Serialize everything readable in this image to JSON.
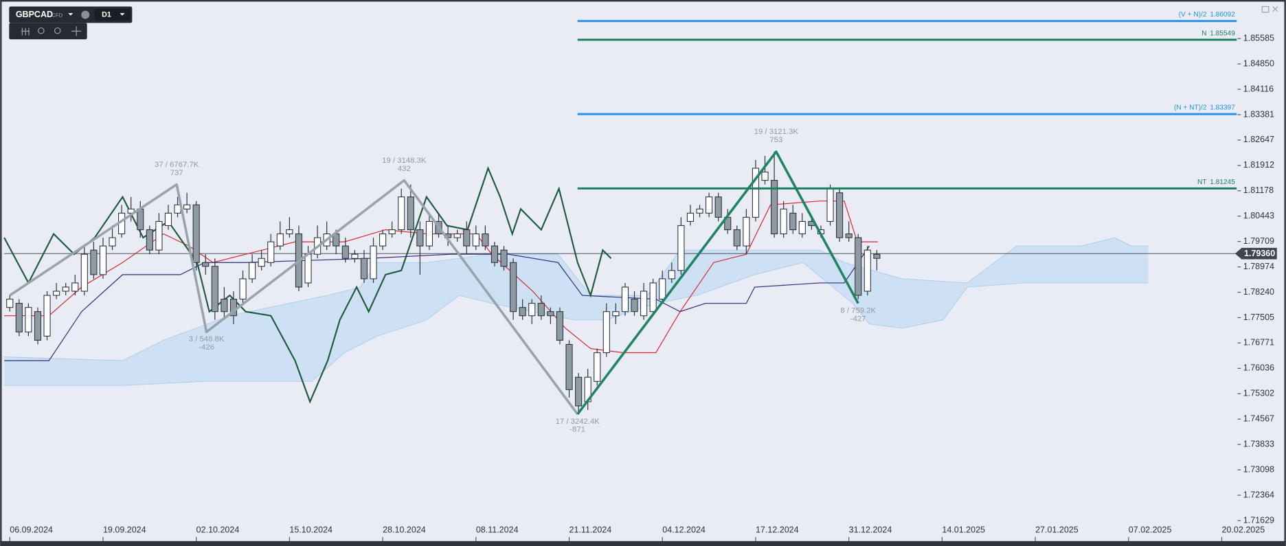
{
  "toolbar": {
    "symbol": "GBPCAD",
    "market": "CFD",
    "timeframe": "D1"
  },
  "chart_data": {
    "type": "candlestick",
    "x": [
      0,
      1,
      2,
      3,
      4,
      5,
      6,
      7,
      8,
      9,
      10,
      11,
      12,
      13,
      14,
      15,
      16,
      17,
      18,
      19,
      20,
      21,
      22,
      23,
      24,
      25,
      26,
      27,
      28,
      29,
      30,
      31,
      32,
      33,
      34,
      35,
      36,
      37,
      38,
      39,
      40,
      41,
      42,
      43,
      44,
      45,
      46,
      47,
      48,
      49,
      50,
      51,
      52,
      53,
      54,
      55,
      56,
      57,
      58,
      59,
      60,
      61,
      62,
      63,
      64,
      65,
      66,
      67,
      68,
      69,
      70,
      71,
      72,
      73,
      74,
      75,
      76,
      77,
      78,
      79,
      80,
      81,
      82,
      83,
      84,
      85,
      86,
      87,
      88,
      89,
      90,
      91,
      92,
      93
    ],
    "open": [
      1.778,
      1.7792,
      1.7709,
      1.7768,
      1.7697,
      1.7815,
      1.7827,
      1.7827,
      1.7827,
      1.7946,
      1.7875,
      1.7958,
      1.7993,
      1.8053,
      1.8065,
      1.8005,
      1.7946,
      1.8017,
      1.8053,
      1.8065,
      1.8077,
      1.791,
      1.7899,
      1.7804,
      1.7804,
      1.7804,
      1.7863,
      1.7899,
      1.791,
      1.7958,
      1.7993,
      1.7993,
      1.7851,
      1.7934,
      1.7958,
      1.7993,
      1.7958,
      1.7922,
      1.7922,
      1.7863,
      1.7958,
      1.7993,
      1.8005,
      1.81,
      1.8005,
      1.7958,
      1.8029,
      1.7993,
      1.7982,
      1.8005,
      1.7958,
      1.7993,
      1.7958,
      1.7946,
      1.791,
      1.778,
      1.7756,
      1.7792,
      1.7768,
      1.7768,
      1.7673,
      1.7578,
      1.7507,
      1.7566,
      1.7649,
      1.7756,
      1.7768,
      1.7804,
      1.7756,
      1.7768,
      1.7804,
      1.7863,
      1.7887,
      1.8029,
      1.8053,
      1.8053,
      1.81,
      1.8041,
      1.8005,
      1.7958,
      1.8041,
      1.8148,
      1.8148,
      1.7993,
      1.8053,
      1.7993,
      1.8029,
      1.7993,
      1.8029,
      1.8112,
      1.7993,
      1.7982,
      1.7827,
      1.7934
    ],
    "high": [
      1.7815,
      1.7804,
      1.7792,
      1.778,
      1.7827,
      1.7851,
      1.7851,
      1.7875,
      1.7958,
      1.797,
      1.7982,
      1.8017,
      1.8077,
      1.81,
      1.8088,
      1.8017,
      1.8053,
      1.8077,
      1.81,
      1.8112,
      1.8088,
      1.7934,
      1.7922,
      1.7839,
      1.7827,
      1.7887,
      1.7934,
      1.7946,
      1.7993,
      1.8029,
      1.8041,
      1.8017,
      1.7958,
      1.8017,
      1.8029,
      1.8005,
      1.7982,
      1.7946,
      1.7946,
      1.7982,
      1.8005,
      1.8029,
      1.8124,
      1.8136,
      1.8029,
      1.8053,
      1.8053,
      1.8017,
      1.8005,
      1.8029,
      1.8017,
      1.8017,
      1.797,
      1.7958,
      1.7922,
      1.7804,
      1.7804,
      1.7815,
      1.778,
      1.778,
      1.7685,
      1.759,
      1.7602,
      1.7661,
      1.7792,
      1.7792,
      1.7851,
      1.7827,
      1.7851,
      1.7863,
      1.7887,
      1.791,
      1.8041,
      1.8077,
      1.8077,
      1.8112,
      1.8112,
      1.8065,
      1.8017,
      1.8065,
      1.8207,
      1.8219,
      1.8231,
      1.8088,
      1.8077,
      1.8053,
      1.8041,
      1.8017,
      1.8136,
      1.8124,
      1.8029,
      1.7993,
      1.7958,
      1.7946
    ],
    "low": [
      1.7768,
      1.7697,
      1.7697,
      1.7673,
      1.7685,
      1.7804,
      1.7815,
      1.7815,
      1.7815,
      1.7863,
      1.7863,
      1.7946,
      1.7982,
      1.8029,
      1.7982,
      1.7934,
      1.7934,
      1.8005,
      1.8041,
      1.8053,
      1.7887,
      1.7875,
      1.7744,
      1.7744,
      1.7732,
      1.7792,
      1.7851,
      1.7887,
      1.7899,
      1.7946,
      1.7982,
      1.7827,
      1.7839,
      1.7922,
      1.7946,
      1.7934,
      1.791,
      1.791,
      1.7851,
      1.7851,
      1.7946,
      1.7982,
      1.7993,
      1.7982,
      1.7875,
      1.7946,
      1.7982,
      1.7958,
      1.797,
      1.7934,
      1.7946,
      1.7946,
      1.7899,
      1.7887,
      1.7744,
      1.7744,
      1.7732,
      1.7744,
      1.7732,
      1.7673,
      1.7519,
      1.7471,
      1.7483,
      1.7554,
      1.7637,
      1.7732,
      1.7756,
      1.7756,
      1.7744,
      1.7756,
      1.7792,
      1.7851,
      1.7875,
      1.8017,
      1.8041,
      1.8041,
      1.8029,
      1.7993,
      1.7946,
      1.7934,
      1.8029,
      1.8136,
      1.7982,
      1.7982,
      1.7993,
      1.7982,
      1.8005,
      1.7982,
      1.8017,
      1.797,
      1.797,
      1.7804,
      1.7815,
      1.7887
    ],
    "close": [
      1.7804,
      1.7709,
      1.778,
      1.7685,
      1.7815,
      1.7827,
      1.7839,
      1.7851,
      1.7934,
      1.7875,
      1.7958,
      1.7982,
      1.8053,
      1.8065,
      1.8005,
      1.7946,
      1.8029,
      1.8053,
      1.8077,
      1.8077,
      1.791,
      1.7899,
      1.7768,
      1.7768,
      1.7756,
      1.7863,
      1.791,
      1.7922,
      1.797,
      1.7993,
      1.8005,
      1.7839,
      1.7934,
      1.7982,
      1.7993,
      1.7958,
      1.7922,
      1.7934,
      1.7863,
      1.7958,
      1.7993,
      1.8005,
      1.81,
      1.8005,
      1.7958,
      1.8029,
      1.7993,
      1.7982,
      1.7993,
      1.7958,
      1.7993,
      1.7958,
      1.791,
      1.7899,
      1.7768,
      1.7756,
      1.7792,
      1.7756,
      1.7756,
      1.7685,
      1.7542,
      1.7495,
      1.7578,
      1.7649,
      1.7768,
      1.7768,
      1.7839,
      1.7768,
      1.7827,
      1.7851,
      1.7863,
      1.7887,
      1.8017,
      1.8053,
      1.8065,
      1.81,
      1.8041,
      1.8005,
      1.7958,
      1.8041,
      1.8183,
      1.8172,
      1.7993,
      1.8065,
      1.8005,
      1.8029,
      1.8017,
      1.8005,
      1.8124,
      1.7982,
      1.7982,
      1.7815,
      1.7946,
      1.7922
    ],
    "up_color": "#ffffff",
    "down_color": "#8e9ba4",
    "xlim": [
      -0.6,
      131.6
    ],
    "xticks": [
      {
        "value": 0,
        "label": "06.09.2024"
      },
      {
        "value": 10,
        "label": "19.09.2024"
      },
      {
        "value": 20,
        "label": "02.10.2024"
      },
      {
        "value": 30,
        "label": "15.10.2024"
      },
      {
        "value": 40,
        "label": "28.10.2024"
      },
      {
        "value": 50,
        "label": "08.11.2024"
      },
      {
        "value": 60,
        "label": "21.11.2024"
      },
      {
        "value": 70,
        "label": "04.12.2024"
      },
      {
        "value": 80,
        "label": "17.12.2024"
      },
      {
        "value": 90,
        "label": "31.12.2024"
      },
      {
        "value": 100,
        "label": "14.01.2025"
      },
      {
        "value": 110,
        "label": "27.01.2025"
      },
      {
        "value": 120,
        "label": "07.02.2025"
      },
      {
        "value": 130,
        "label": "20.02.2025"
      }
    ],
    "ylim": [
      1.71036,
      1.86582
    ],
    "yticks": [
      1.85585,
      {
        "value": 1.8485,
        "label": "1.84850"
      },
      1.84116,
      1.83381,
      1.82647,
      1.81912,
      1.81178,
      1.80443,
      1.79709,
      1.78974,
      {
        "value": 1.7824,
        "label": "1.78240"
      },
      1.77505,
      1.76771,
      1.76036,
      1.75302,
      1.74567,
      1.73833,
      1.73098,
      1.72364,
      1.71629
    ],
    "cloud": {
      "color": "#c4def3",
      "upper": {
        "x": [
          -0.6,
          12.1,
          16.5,
          23.6,
          34.1,
          37.6,
          39.4,
          44.7,
          51.7,
          58.8,
          62.3,
          68.4,
          71.9,
          86.9,
          89.5,
          95.7,
          102.7,
          108.0,
          115.0,
          118.5,
          120.3,
          122.1
        ],
        "values": [
          1.7637,
          1.7626,
          1.7685,
          1.7756,
          1.7815,
          1.7839,
          1.791,
          1.791,
          1.7934,
          1.7934,
          1.7815,
          1.7815,
          1.7946,
          1.7946,
          1.791,
          1.7863,
          1.7851,
          1.7958,
          1.7958,
          1.7982,
          1.7958,
          1.7958
        ]
      },
      "lower": {
        "x": [
          -0.6,
          12.1,
          20.9,
          32.4,
          35.9,
          39.4,
          44.7,
          48.2,
          51.7,
          56.1,
          60.5,
          64.0,
          69.3,
          73.7,
          79.9,
          85.1,
          90.4,
          92.2,
          95.7,
          100.1,
          102.7,
          108.9,
          122.1
        ],
        "values": [
          1.7554,
          1.7554,
          1.7566,
          1.7566,
          1.7649,
          1.7697,
          1.7744,
          1.7815,
          1.7792,
          1.7768,
          1.7744,
          1.7744,
          1.7792,
          1.7815,
          1.7875,
          1.791,
          1.7792,
          1.7732,
          1.772,
          1.7744,
          1.7839,
          1.7851,
          1.7851
        ]
      }
    },
    "lines": [
      {
        "color": "#d7262b",
        "x": [
          -0.6,
          4.2,
          7.7,
          12.1,
          16.5,
          19.2,
          21.8,
          25.3,
          30.6,
          35.9,
          40.3,
          44.7,
          50.0,
          51.7,
          56.1,
          59.6,
          62.3,
          65.8,
          69.3,
          71.9,
          75.5,
          79.0,
          81.6,
          86.9,
          89.5,
          90.9,
          93.1
        ],
        "values": [
          1.7756,
          1.7756,
          1.7839,
          1.791,
          1.7993,
          1.7958,
          1.791,
          1.7934,
          1.797,
          1.797,
          1.8005,
          1.7993,
          1.7993,
          1.7934,
          1.7827,
          1.772,
          1.7661,
          1.7649,
          1.7649,
          1.7768,
          1.791,
          1.7934,
          1.8077,
          1.8088,
          1.8088,
          1.797,
          1.797
        ]
      },
      {
        "color": "#2d2a7c",
        "x": [
          -0.6,
          4.2,
          7.7,
          12.1,
          18.3,
          20.9,
          25.3,
          38.5,
          47.3,
          53.5,
          58.8,
          61.4,
          69.3,
          71.9,
          74.6,
          79.0,
          79.9,
          86.9,
          89.5,
          92.2
        ],
        "values": [
          1.7626,
          1.7626,
          1.7768,
          1.7875,
          1.7875,
          1.791,
          1.791,
          1.7922,
          1.7934,
          1.7934,
          1.791,
          1.7815,
          1.7804,
          1.7768,
          1.7792,
          1.7792,
          1.7839,
          1.7851,
          1.7851,
          1.7958
        ]
      },
      {
        "color": "#1d5a3c",
        "x": [
          -0.6,
          2.0,
          4.7,
          6.9,
          9.1,
          12.1,
          14.3,
          17.0,
          20.1,
          21.4,
          23.6,
          25.3,
          28.0,
          30.6,
          32.2,
          34.1,
          35.4,
          37.2,
          38.5,
          40.3,
          42.0,
          44.7,
          46.9,
          49.1,
          51.3,
          52.6,
          53.9,
          54.8,
          57.0,
          58.9,
          60.9,
          62.3,
          63.6,
          64.5
        ],
        "values": [
          1.7982,
          1.7851,
          1.7993,
          1.7934,
          1.7982,
          1.81,
          1.7982,
          1.8029,
          1.791,
          1.7768,
          1.7815,
          1.7768,
          1.7756,
          1.7626,
          1.7507,
          1.7626,
          1.7744,
          1.7839,
          1.7768,
          1.7875,
          1.7887,
          1.81,
          1.8017,
          1.8005,
          1.8183,
          1.81,
          1.7993,
          1.8065,
          1.8005,
          1.8124,
          1.791,
          1.7815,
          1.7946,
          1.7922
        ]
      }
    ],
    "waves": [
      {
        "color": "#97a4ac",
        "x": [
          0,
          17.9,
          21.1,
          42.3,
          60.9
        ],
        "values": [
          1.7815,
          1.8136,
          1.7709,
          1.8148,
          1.7471
        ],
        "labels": [
          null,
          [
            "37 / 6767.7K",
            "737"
          ],
          [
            "3 / 548.8K",
            "-426"
          ],
          [
            "19 / 3148.3K",
            "432"
          ],
          [
            "17 / 3242.4K",
            "-871"
          ]
        ]
      },
      {
        "color": "#1e8462",
        "x": [
          60.9,
          82.2,
          91.0
        ],
        "values": [
          1.7471,
          1.8231,
          1.7792
        ],
        "labels": [
          null,
          [
            "19 / 3121.3K",
            "753"
          ],
          [
            "8 / 759.2K",
            "-427"
          ]
        ]
      }
    ],
    "levels": [
      {
        "name": "(V + N)/2",
        "value": 1.86092,
        "color": "#2b90e3"
      },
      {
        "name": "N",
        "value": 1.85549,
        "color": "#1c7f5c"
      },
      {
        "name": "(N + NT)/2",
        "value": 1.83397,
        "color": "#2b90e3"
      },
      {
        "name": "NT",
        "value": 1.81245,
        "color": "#1c7f5c"
      }
    ],
    "last_price": {
      "value": 1.7936,
      "label": "1.79360"
    }
  }
}
